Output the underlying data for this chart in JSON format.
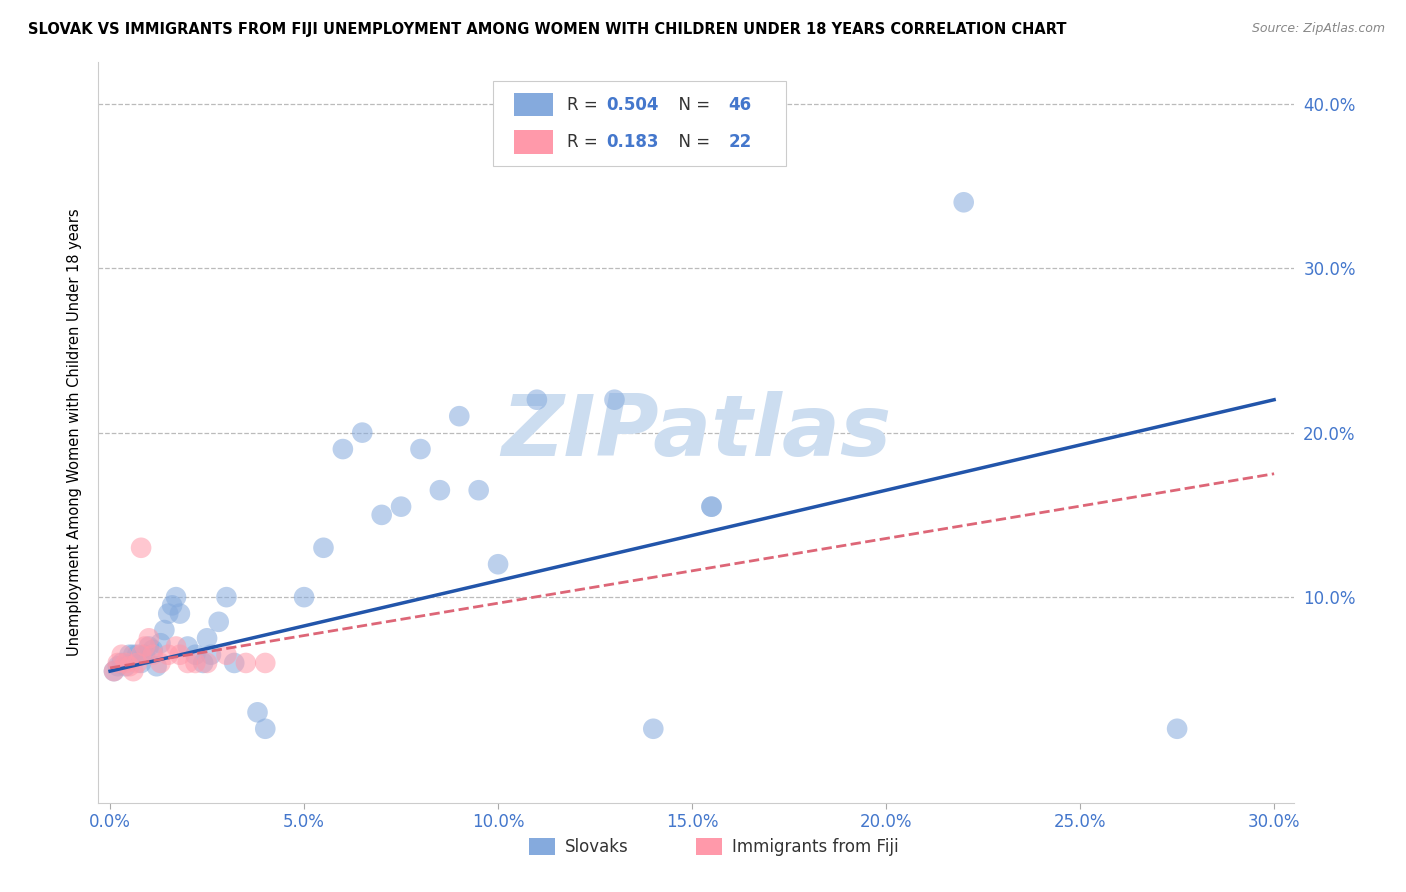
{
  "title": "SLOVAK VS IMMIGRANTS FROM FIJI UNEMPLOYMENT AMONG WOMEN WITH CHILDREN UNDER 18 YEARS CORRELATION CHART",
  "source": "Source: ZipAtlas.com",
  "ylabel_label": "Unemployment Among Women with Children Under 18 years",
  "xlim": [
    -0.003,
    0.305
  ],
  "ylim": [
    -0.025,
    0.425
  ],
  "legend_label1": "Slovaks",
  "legend_label2": "Immigrants from Fiji",
  "R1": "0.504",
  "N1": "46",
  "R2": "0.183",
  "N2": "22",
  "color_blue": "#85AADD",
  "color_pink": "#FF99AA",
  "color_blue_line": "#2255AA",
  "color_pink_line": "#DD6677",
  "watermark": "ZIPatlas",
  "watermark_color": "#CCDDF0",
  "slovak_x": [
    0.001,
    0.002,
    0.003,
    0.004,
    0.005,
    0.006,
    0.007,
    0.008,
    0.009,
    0.01,
    0.011,
    0.012,
    0.013,
    0.014,
    0.015,
    0.016,
    0.017,
    0.018,
    0.02,
    0.022,
    0.024,
    0.025,
    0.026,
    0.028,
    0.03,
    0.032,
    0.038,
    0.04,
    0.05,
    0.055,
    0.06,
    0.065,
    0.07,
    0.075,
    0.08,
    0.085,
    0.09,
    0.095,
    0.1,
    0.11,
    0.13,
    0.155,
    0.14,
    0.155,
    0.22,
    0.275
  ],
  "slovak_y": [
    0.055,
    0.058,
    0.06,
    0.058,
    0.065,
    0.065,
    0.065,
    0.06,
    0.065,
    0.07,
    0.068,
    0.058,
    0.072,
    0.08,
    0.09,
    0.095,
    0.1,
    0.09,
    0.07,
    0.065,
    0.06,
    0.075,
    0.065,
    0.085,
    0.1,
    0.06,
    0.03,
    0.02,
    0.1,
    0.13,
    0.19,
    0.2,
    0.15,
    0.155,
    0.19,
    0.165,
    0.21,
    0.165,
    0.12,
    0.22,
    0.22,
    0.155,
    0.02,
    0.155,
    0.34,
    0.02
  ],
  "fiji_x": [
    0.001,
    0.002,
    0.003,
    0.004,
    0.005,
    0.006,
    0.007,
    0.008,
    0.009,
    0.01,
    0.011,
    0.013,
    0.015,
    0.017,
    0.018,
    0.02,
    0.022,
    0.025,
    0.03,
    0.035,
    0.04,
    0.008
  ],
  "fiji_y": [
    0.055,
    0.06,
    0.065,
    0.06,
    0.058,
    0.055,
    0.06,
    0.065,
    0.07,
    0.075,
    0.065,
    0.06,
    0.065,
    0.07,
    0.065,
    0.06,
    0.06,
    0.06,
    0.065,
    0.06,
    0.06,
    0.13
  ],
  "trend_blue_x0": 0.0,
  "trend_blue_x1": 0.3,
  "trend_blue_y0": 0.055,
  "trend_blue_y1": 0.22,
  "trend_pink_x0": 0.0,
  "trend_pink_x1": 0.3,
  "trend_pink_y0": 0.057,
  "trend_pink_y1": 0.175
}
